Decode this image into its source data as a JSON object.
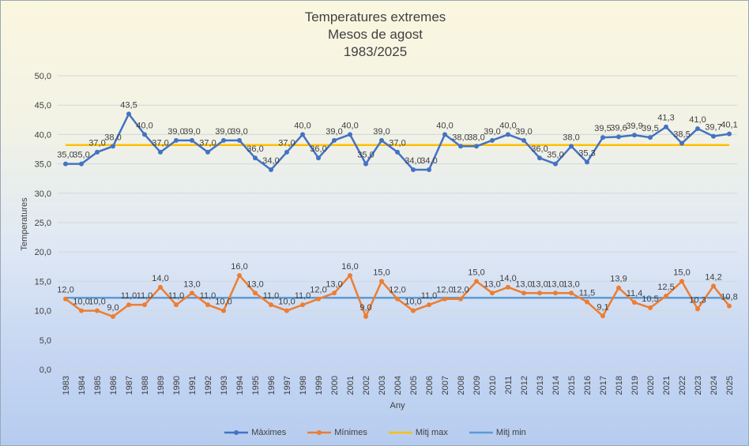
{
  "chart_data": {
    "type": "line",
    "title": [
      "Temperatures extremes",
      "Mesos de agost",
      "1983/2025"
    ],
    "xlabel": "Any",
    "ylabel": "Temperatures",
    "ylim": [
      0,
      50
    ],
    "yticks": [
      "0,0",
      "5,0",
      "10,0",
      "15,0",
      "20,0",
      "25,0",
      "30,0",
      "35,0",
      "40,0",
      "45,0",
      "50,0"
    ],
    "grid": true,
    "legend": "bottom",
    "categories": [
      "1983",
      "1984",
      "1985",
      "1986",
      "1987",
      "1988",
      "1989",
      "1990",
      "1991",
      "1992",
      "1993",
      "1994",
      "1995",
      "1996",
      "1997",
      "1998",
      "1999",
      "2000",
      "2001",
      "2002",
      "2003",
      "2004",
      "2005",
      "2006",
      "2007",
      "2008",
      "2009",
      "2010",
      "2011",
      "2012",
      "2013",
      "2014",
      "2015",
      "2016",
      "2017",
      "2018",
      "2019",
      "2020",
      "2021",
      "2022",
      "2023",
      "2024",
      "2025"
    ],
    "series": [
      {
        "name": "Màximes",
        "color": "#4472c4",
        "marker": true,
        "values": [
          35.0,
          35.0,
          37.0,
          38.0,
          43.5,
          40.0,
          37.0,
          39.0,
          39.0,
          37.0,
          39.0,
          39.0,
          36.0,
          34.0,
          37.0,
          40.0,
          36.0,
          39.0,
          40.0,
          35.0,
          39.0,
          37.0,
          34.0,
          34.0,
          40.0,
          38.0,
          38.0,
          39.0,
          40.0,
          39.0,
          36.0,
          35.0,
          38.0,
          35.3,
          39.5,
          39.6,
          39.9,
          39.5,
          41.3,
          38.5,
          41.0,
          39.7,
          40.1
        ],
        "labels": [
          "35,0",
          "35,0",
          "37,0",
          "38,0",
          "43,5",
          "40,0",
          "37,0",
          "39,0",
          "39,0",
          "37,0",
          "39,0",
          "39,0",
          "36,0",
          "34,0",
          "37,0",
          "40,0",
          "36,0",
          "39,0",
          "40,0",
          "35,0",
          "39,0",
          "37,0",
          "34,0",
          "34,0",
          "40,0",
          "38,0",
          "38,0",
          "39,0",
          "40,0",
          "39,0",
          "36,0",
          "35,0",
          "38,0",
          "35,3",
          "39,5",
          "39,6",
          "39,9",
          "39,5",
          "41,3",
          "38,5",
          "41,0",
          "39,7",
          "40,1"
        ]
      },
      {
        "name": "Mínimes",
        "color": "#ed7d31",
        "marker": true,
        "values": [
          12.0,
          10.0,
          10.0,
          9.0,
          11.0,
          11.0,
          14.0,
          11.0,
          13.0,
          11.0,
          10.0,
          16.0,
          13.0,
          11.0,
          10.0,
          11.0,
          12.0,
          13.0,
          16.0,
          9.0,
          15.0,
          12.0,
          10.0,
          11.0,
          12.0,
          12.0,
          15.0,
          13.0,
          14.0,
          13.0,
          13.0,
          13.0,
          13.0,
          11.5,
          9.1,
          13.9,
          11.4,
          10.5,
          12.5,
          15.0,
          10.3,
          14.2,
          10.8
        ],
        "labels": [
          "12,0",
          "10,0",
          "10,0",
          "9,0",
          "11,0",
          "11,0",
          "14,0",
          "11,0",
          "13,0",
          "11,0",
          "10,0",
          "16,0",
          "13,0",
          "11,0",
          "10,0",
          "11,0",
          "12,0",
          "13,0",
          "16,0",
          "9,0",
          "15,0",
          "12,0",
          "10,0",
          "11,0",
          "12,0",
          "12,0",
          "15,0",
          "13,0",
          "14,0",
          "13,0",
          "13,0",
          "13,0",
          "13,0",
          "11,5",
          "9,1",
          "13,9",
          "11,4",
          "10,5",
          "12,5",
          "15,0",
          "10,3",
          "14,2",
          "10,8"
        ]
      },
      {
        "name": "Mitj max",
        "color": "#ffc000",
        "marker": false,
        "constant": 38.2
      },
      {
        "name": "Mitj min",
        "color": "#5b9bd5",
        "marker": false,
        "constant": 12.2
      }
    ]
  }
}
